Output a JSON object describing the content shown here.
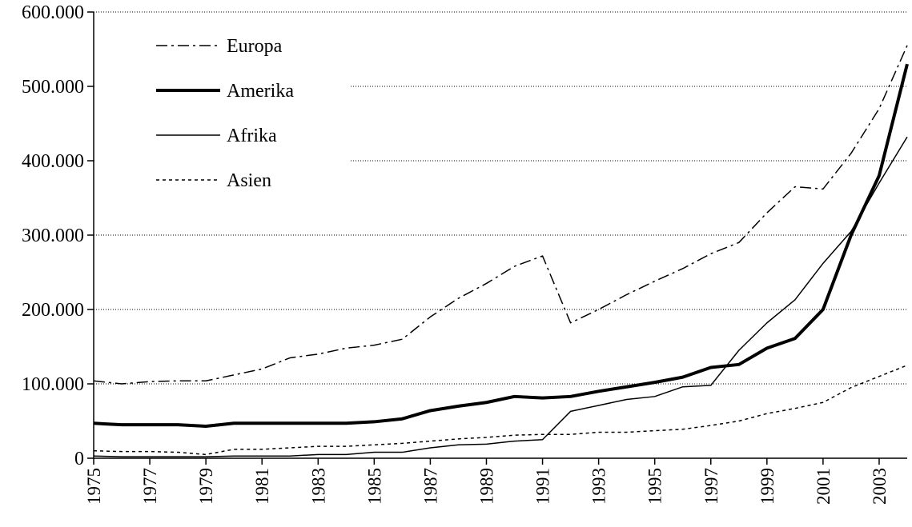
{
  "chart_data": {
    "type": "line",
    "x": [
      1975,
      1976,
      1977,
      1978,
      1979,
      1980,
      1981,
      1982,
      1983,
      1984,
      1985,
      1986,
      1987,
      1988,
      1989,
      1990,
      1991,
      1992,
      1993,
      1994,
      1995,
      1996,
      1997,
      1998,
      1999,
      2000,
      2001,
      2002,
      2003,
      2004
    ],
    "series": [
      {
        "name": "Europa",
        "color": "#000000",
        "dash": "dashdot",
        "values": [
          104000,
          100000,
          103000,
          104000,
          104000,
          112000,
          120000,
          135000,
          140000,
          148000,
          152000,
          160000,
          190000,
          215000,
          235000,
          258000,
          272000,
          182000,
          200000,
          220000,
          238000,
          255000,
          275000,
          290000,
          330000,
          365000,
          362000,
          410000,
          470000,
          555000
        ]
      },
      {
        "name": "Amerika",
        "color": "#000000",
        "dash": "thick",
        "values": [
          47000,
          45000,
          45000,
          45000,
          43000,
          47000,
          47000,
          47000,
          47000,
          47000,
          49000,
          53000,
          64000,
          70000,
          75000,
          83000,
          81000,
          83000,
          90000,
          96000,
          102000,
          109000,
          122000,
          126000,
          148000,
          161000,
          200000,
          300000,
          380000,
          530000
        ]
      },
      {
        "name": "Afrika",
        "color": "#000000",
        "dash": "solid",
        "values": [
          3000,
          2000,
          2000,
          2000,
          2000,
          3000,
          3000,
          3000,
          5000,
          5000,
          8000,
          8000,
          14000,
          18000,
          19000,
          23000,
          25000,
          63000,
          71000,
          79000,
          83000,
          96000,
          98000,
          145000,
          182000,
          213000,
          262000,
          305000,
          370000,
          432000
        ]
      },
      {
        "name": "Asien",
        "color": "#000000",
        "dash": "dotted",
        "values": [
          10000,
          9000,
          9000,
          8000,
          5000,
          12000,
          12000,
          14000,
          16000,
          16000,
          18000,
          20000,
          23000,
          26000,
          28000,
          31000,
          32000,
          32000,
          35000,
          35000,
          37000,
          39000,
          44000,
          50000,
          60000,
          67000,
          75000,
          95000,
          110000,
          125000
        ]
      }
    ],
    "xlim": [
      1975,
      2004
    ],
    "xticks": [
      1975,
      1977,
      1979,
      1981,
      1983,
      1985,
      1987,
      1989,
      1991,
      1993,
      1995,
      1997,
      1999,
      2001,
      2003
    ],
    "ylim": [
      0,
      600000
    ],
    "yticks": [
      0,
      {
        "value": 100000,
        "label": "100.000"
      },
      {
        "value": 200000,
        "label": "200.000"
      },
      {
        "value": 300000,
        "label": "300.000"
      },
      {
        "value": 400000,
        "label": "400.000"
      },
      {
        "value": 500000,
        "label": "500.000"
      },
      {
        "value": 600000,
        "label": "600.000"
      }
    ],
    "grid": true,
    "legend": "top-left"
  }
}
